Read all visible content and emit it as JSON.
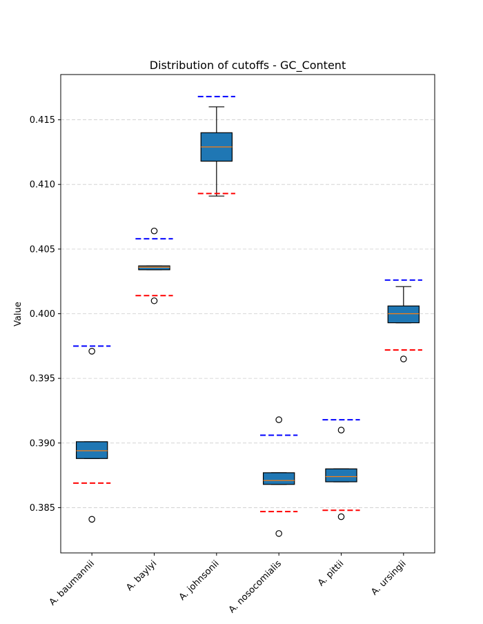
{
  "chart_data": {
    "type": "box",
    "title": "Distribution of cutoffs - GC_Content",
    "xlabel": "",
    "ylabel": "Value",
    "ylim": [
      0.3815,
      0.4185
    ],
    "yticks": [
      0.385,
      0.39,
      0.395,
      0.4,
      0.405,
      0.41,
      0.415
    ],
    "ytick_labels": [
      "0.385",
      "0.390",
      "0.395",
      "0.400",
      "0.405",
      "0.410",
      "0.415"
    ],
    "grid": "y-dashed",
    "colors": {
      "box_fill": "#1f77b4",
      "median": "#ff7f0e",
      "upper_cutoff": "#0000ff",
      "lower_cutoff": "#ff0000",
      "grid": "#cccccc"
    },
    "categories": [
      "A. baumannii",
      "A. baylyi",
      "A. johnsonii",
      "A. nosocomialis",
      "A. pittii",
      "A. ursingii"
    ],
    "boxes": [
      {
        "q1": 0.3888,
        "median": 0.3894,
        "q3": 0.3901,
        "whisker_low": 0.3888,
        "whisker_high": 0.3901,
        "outliers": [
          0.3971,
          0.3841
        ],
        "upper_cutoff": 0.3975,
        "lower_cutoff": 0.3869
      },
      {
        "q1": 0.4034,
        "median": 0.4036,
        "q3": 0.4037,
        "whisker_low": 0.4034,
        "whisker_high": 0.4037,
        "outliers": [
          0.4064,
          0.401
        ],
        "upper_cutoff": 0.4058,
        "lower_cutoff": 0.4014
      },
      {
        "q1": 0.4118,
        "median": 0.4129,
        "q3": 0.414,
        "whisker_low": 0.4091,
        "whisker_high": 0.416,
        "outliers": [],
        "upper_cutoff": 0.4168,
        "lower_cutoff": 0.4093
      },
      {
        "q1": 0.3868,
        "median": 0.3871,
        "q3": 0.3877,
        "whisker_low": 0.3868,
        "whisker_high": 0.3877,
        "outliers": [
          0.3918,
          0.383
        ],
        "upper_cutoff": 0.3906,
        "lower_cutoff": 0.3847
      },
      {
        "q1": 0.387,
        "median": 0.3874,
        "q3": 0.388,
        "whisker_low": 0.387,
        "whisker_high": 0.388,
        "outliers": [
          0.391,
          0.3843
        ],
        "upper_cutoff": 0.3918,
        "lower_cutoff": 0.3848
      },
      {
        "q1": 0.3993,
        "median": 0.4,
        "q3": 0.4006,
        "whisker_low": 0.3993,
        "whisker_high": 0.4021,
        "outliers": [
          0.3965
        ],
        "upper_cutoff": 0.4026,
        "lower_cutoff": 0.3972
      }
    ]
  }
}
